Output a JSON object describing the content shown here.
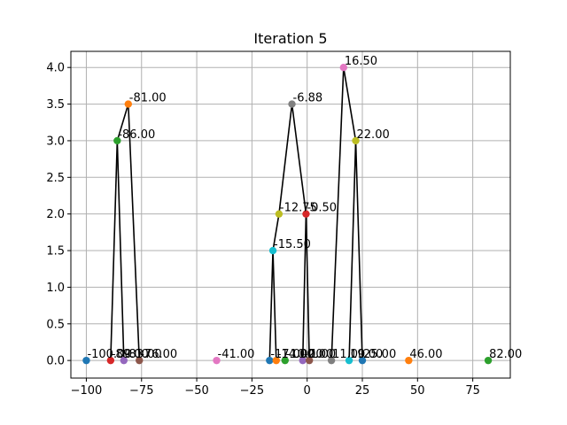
{
  "chart_data": {
    "type": "scatter",
    "title": "Iteration 5",
    "xlabel": "",
    "ylabel": "",
    "xlim": [
      -107,
      92
    ],
    "ylim": [
      -0.24,
      4.22
    ],
    "grid": true,
    "x_ticks": [
      -100,
      -75,
      -50,
      -25,
      0,
      25,
      50,
      75
    ],
    "x_tick_labels": [
      "−100",
      "−75",
      "−50",
      "−25",
      "0",
      "25",
      "50",
      "75"
    ],
    "y_ticks": [
      0.0,
      0.5,
      1.0,
      1.5,
      2.0,
      2.5,
      3.0,
      3.5,
      4.0
    ],
    "y_tick_labels": [
      "0.0",
      "0.5",
      "1.0",
      "1.5",
      "2.0",
      "2.5",
      "3.0",
      "3.5",
      "4.0"
    ],
    "points": [
      {
        "x": -100,
        "y": 0,
        "label": "-100.00",
        "color": "#1f77b4"
      },
      {
        "x": -89,
        "y": 0,
        "label": "-89.00",
        "color": "#d62728"
      },
      {
        "x": -83,
        "y": 0,
        "label": "-83.00",
        "color": "#9467bd"
      },
      {
        "x": -76,
        "y": 0,
        "label": "-76.00",
        "color": "#8c564b"
      },
      {
        "x": -41,
        "y": 0,
        "label": "-41.00",
        "color": "#e377c2"
      },
      {
        "x": -17,
        "y": 0,
        "label": "-17.00",
        "color": "#1f77b4"
      },
      {
        "x": -14,
        "y": 0,
        "label": "-14.00",
        "color": "#ff7f0e"
      },
      {
        "x": -10,
        "y": 0,
        "label": "-10.00",
        "color": "#2ca02c"
      },
      {
        "x": -2,
        "y": 0,
        "label": "-2.00",
        "color": "#9467bd"
      },
      {
        "x": 1,
        "y": 0,
        "label": "1.00",
        "color": "#8c564b"
      },
      {
        "x": 11,
        "y": 0,
        "label": "11.00",
        "color": "#7f7f7f"
      },
      {
        "x": 19,
        "y": 0,
        "label": "19.00",
        "color": "#17becf"
      },
      {
        "x": 25,
        "y": 0,
        "label": "25.00",
        "color": "#1f77b4"
      },
      {
        "x": 46,
        "y": 0,
        "label": "46.00",
        "color": "#ff7f0e"
      },
      {
        "x": 82,
        "y": 0,
        "label": "82.00",
        "color": "#2ca02c"
      },
      {
        "x": -81,
        "y": 3.5,
        "label": "-81.00",
        "color": "#ff7f0e"
      },
      {
        "x": -86,
        "y": 3.0,
        "label": "-86.00",
        "color": "#2ca02c"
      },
      {
        "x": -6.88,
        "y": 3.5,
        "label": "-6.88",
        "color": "#7f7f7f"
      },
      {
        "x": -12.75,
        "y": 2.0,
        "label": "-12.75",
        "color": "#bcbd22"
      },
      {
        "x": -0.5,
        "y": 2.0,
        "label": "-0.50",
        "color": "#d62728"
      },
      {
        "x": -15.5,
        "y": 1.5,
        "label": "-15.50",
        "color": "#17becf"
      },
      {
        "x": 16.5,
        "y": 4.0,
        "label": "16.50",
        "color": "#e377c2"
      },
      {
        "x": 22,
        "y": 3.0,
        "label": "22.00",
        "color": "#bcbd22"
      }
    ],
    "edges": [
      [
        [
          -81,
          3.5
        ],
        [
          -86,
          3.0
        ]
      ],
      [
        [
          -86,
          3.0
        ],
        [
          -89,
          0
        ]
      ],
      [
        [
          -86,
          3.0
        ],
        [
          -83,
          0
        ]
      ],
      [
        [
          -81,
          3.5
        ],
        [
          -76,
          0
        ]
      ],
      [
        [
          -6.88,
          3.5
        ],
        [
          -12.75,
          2.0
        ]
      ],
      [
        [
          -6.88,
          3.5
        ],
        [
          -0.5,
          2.0
        ]
      ],
      [
        [
          -12.75,
          2.0
        ],
        [
          -15.5,
          1.5
        ]
      ],
      [
        [
          -15.5,
          1.5
        ],
        [
          -17,
          0
        ]
      ],
      [
        [
          -15.5,
          1.5
        ],
        [
          -14,
          0
        ]
      ],
      [
        [
          -0.5,
          2.0
        ],
        [
          -2,
          0
        ]
      ],
      [
        [
          -0.5,
          2.0
        ],
        [
          1,
          0
        ]
      ],
      [
        [
          16.5,
          4.0
        ],
        [
          22,
          3.0
        ]
      ],
      [
        [
          16.5,
          4.0
        ],
        [
          11,
          0
        ]
      ],
      [
        [
          22,
          3.0
        ],
        [
          19,
          0
        ]
      ],
      [
        [
          22,
          3.0
        ],
        [
          25,
          0
        ]
      ]
    ]
  }
}
